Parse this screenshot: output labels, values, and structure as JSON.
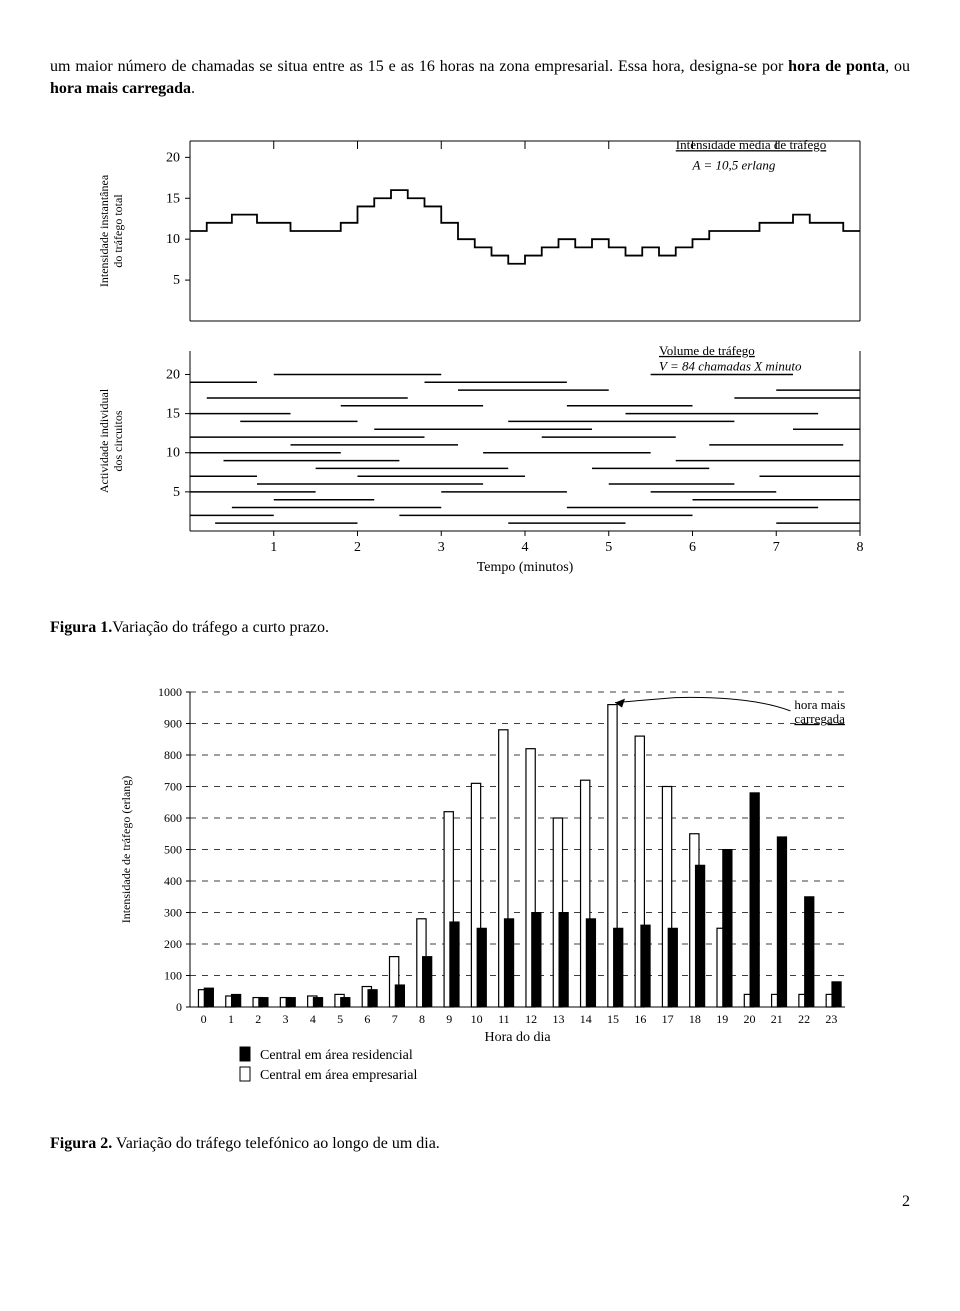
{
  "intro_text": {
    "pre": "um maior número de chamadas se situa entre as 15 e as 16 horas na zona empresarial. Essa hora, designa-se por ",
    "bold1": "hora de ponta",
    "mid": ", ou ",
    "bold2": "hora mais carregada",
    "post": "."
  },
  "figure1": {
    "caption_label": "Figura 1.",
    "caption_text": "Variação do tráfego a curto prazo.",
    "top_panel": {
      "ylabel": "Intensidade instantânea\ndo tráfego total",
      "yticks": [
        5,
        10,
        15,
        20
      ],
      "ylim": [
        0,
        22
      ],
      "annotation1_u": "Intensidade média de tráfego",
      "annotation1": "A = 10,5 erlang",
      "step_data": [
        [
          0.0,
          11
        ],
        [
          0.2,
          12
        ],
        [
          0.5,
          13
        ],
        [
          0.8,
          12
        ],
        [
          1.0,
          12
        ],
        [
          1.2,
          11
        ],
        [
          1.5,
          11
        ],
        [
          1.8,
          12
        ],
        [
          2.0,
          14
        ],
        [
          2.2,
          15
        ],
        [
          2.4,
          16
        ],
        [
          2.6,
          15
        ],
        [
          2.8,
          14
        ],
        [
          3.0,
          12
        ],
        [
          3.2,
          10
        ],
        [
          3.4,
          9
        ],
        [
          3.6,
          8
        ],
        [
          3.8,
          7
        ],
        [
          4.0,
          8
        ],
        [
          4.2,
          9
        ],
        [
          4.4,
          10
        ],
        [
          4.6,
          9
        ],
        [
          4.8,
          10
        ],
        [
          5.0,
          9
        ],
        [
          5.2,
          8
        ],
        [
          5.4,
          9
        ],
        [
          5.6,
          8
        ],
        [
          5.8,
          9
        ],
        [
          6.0,
          10
        ],
        [
          6.2,
          11
        ],
        [
          6.5,
          11
        ],
        [
          6.8,
          12
        ],
        [
          7.0,
          12
        ],
        [
          7.2,
          13
        ],
        [
          7.4,
          12
        ],
        [
          7.6,
          12
        ],
        [
          7.8,
          11
        ],
        [
          8.0,
          11
        ]
      ],
      "line_color": "#000000"
    },
    "bottom_panel": {
      "ylabel": "Actividade individual\ndos circuitos",
      "yticks": [
        5,
        10,
        15,
        20
      ],
      "ylim": [
        0,
        23
      ],
      "annotation2_u": "Volume de tráfego",
      "annotation2": "V = 84 chamadas X minuto",
      "circuits": [
        [
          [
            0.3,
            2.0
          ],
          [
            3.8,
            5.2
          ],
          [
            7.0,
            8.0
          ]
        ],
        [
          [
            0.0,
            1.0
          ],
          [
            2.5,
            6.0
          ]
        ],
        [
          [
            0.5,
            3.0
          ],
          [
            4.5,
            7.5
          ]
        ],
        [
          [
            1.0,
            2.2
          ],
          [
            6.0,
            8.0
          ]
        ],
        [
          [
            0.0,
            1.5
          ],
          [
            3.0,
            4.5
          ],
          [
            5.5,
            7.0
          ]
        ],
        [
          [
            0.8,
            3.5
          ],
          [
            5.0,
            6.5
          ]
        ],
        [
          [
            0.0,
            0.8
          ],
          [
            2.0,
            4.0
          ],
          [
            6.8,
            8.0
          ]
        ],
        [
          [
            1.5,
            3.8
          ],
          [
            4.8,
            6.2
          ]
        ],
        [
          [
            0.4,
            2.5
          ],
          [
            5.8,
            8.0
          ]
        ],
        [
          [
            0.0,
            1.8
          ],
          [
            3.5,
            5.5
          ]
        ],
        [
          [
            1.2,
            3.2
          ],
          [
            6.2,
            7.8
          ]
        ],
        [
          [
            0.0,
            2.8
          ],
          [
            4.2,
            5.8
          ]
        ],
        [
          [
            2.2,
            4.8
          ],
          [
            7.2,
            8.0
          ]
        ],
        [
          [
            0.6,
            2.0
          ],
          [
            3.8,
            6.5
          ]
        ],
        [
          [
            0.0,
            1.2
          ],
          [
            5.2,
            7.5
          ]
        ],
        [
          [
            1.8,
            3.5
          ],
          [
            4.5,
            6.0
          ]
        ],
        [
          [
            0.2,
            2.6
          ],
          [
            6.5,
            8.0
          ]
        ],
        [
          [
            3.2,
            5.0
          ],
          [
            7.0,
            8.0
          ]
        ],
        [
          [
            0.0,
            0.8
          ],
          [
            2.8,
            4.5
          ]
        ],
        [
          [
            1.0,
            3.0
          ],
          [
            5.5,
            7.2
          ]
        ]
      ],
      "line_color": "#000000"
    },
    "xlabel": "Tempo (minutos)",
    "xticks": [
      1,
      2,
      3,
      4,
      5,
      6,
      7,
      8
    ],
    "xlim": [
      0,
      8
    ]
  },
  "figure2": {
    "caption_label": "Figura 2.",
    "caption_text": " Variação do tráfego telefónico ao longo de um dia.",
    "ylabel": "Intensidade de tráfego (erlang)",
    "xlabel": "Hora do dia",
    "ylim": [
      0,
      1000
    ],
    "yticks": [
      0,
      100,
      200,
      300,
      400,
      500,
      600,
      700,
      800,
      900,
      1000
    ],
    "xlim": [
      -0.5,
      23.5
    ],
    "xticks": [
      0,
      1,
      2,
      3,
      4,
      5,
      6,
      7,
      8,
      9,
      10,
      11,
      12,
      13,
      14,
      15,
      16,
      17,
      18,
      19,
      20,
      21,
      22,
      23
    ],
    "grid_color": "#000000",
    "bar_filled_color": "#000000",
    "bar_empty_color": "#ffffff",
    "bar_width": 0.34,
    "residential": [
      60,
      40,
      30,
      30,
      30,
      30,
      55,
      70,
      160,
      270,
      250,
      280,
      300,
      300,
      280,
      250,
      260,
      250,
      450,
      500,
      680,
      540,
      350,
      80
    ],
    "empresarial": [
      55,
      35,
      30,
      30,
      35,
      40,
      65,
      160,
      280,
      620,
      710,
      880,
      820,
      600,
      720,
      960,
      860,
      700,
      550,
      250,
      40,
      40,
      40,
      40
    ],
    "annotation_label": "hora mais\ncarregada",
    "annotation_target_hour": 15,
    "legend": {
      "item1": "Central em área residencial",
      "item2": "Central em área empresarial"
    }
  },
  "page_number": "2"
}
